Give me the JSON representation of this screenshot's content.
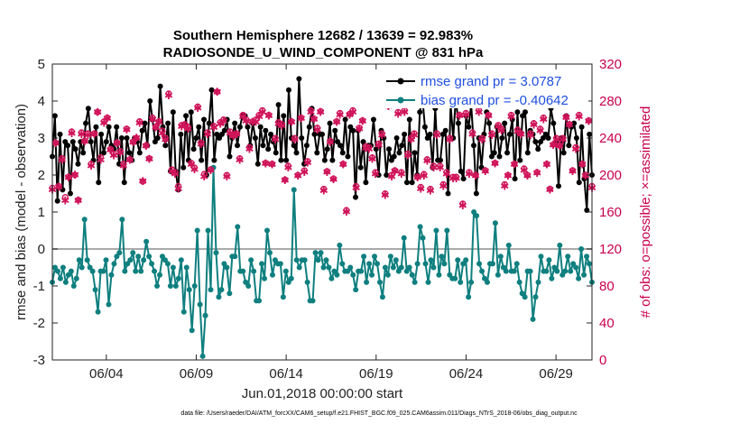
{
  "chart_data": {
    "type": "line",
    "title_line1": "Southern Hemisphere 12682 / 13639 = 92.983%",
    "title_line2": "RADIOSONDE_U_WIND_COMPONENT @ 831 hPa",
    "ylabel_left": "rmse and bias (model - observation)",
    "ylabel_right": "# of obs: o=possible; ×=assimilated",
    "xlabel": "Jun.01,2018 00:00:00 start",
    "footer": "data file: /Users/raeder/DAI/ATM_forcXX/CAM6_setup/f.e21.FHIST_BGC.f09_025.CAM6assim.011/Diags_NTrS_2018-06/obs_diag_output.nc",
    "ylim_left": [
      -3,
      5
    ],
    "ylim_right": [
      0,
      320
    ],
    "xlim_days": [
      1,
      31
    ],
    "yticks_left": [
      "-3",
      "-2",
      "-1",
      "0",
      "1",
      "2",
      "3",
      "4",
      "5"
    ],
    "yticks_right": [
      "0",
      "40",
      "80",
      "120",
      "160",
      "200",
      "240",
      "280",
      "320"
    ],
    "xticks": [
      {
        "day": 4,
        "label": "06/04"
      },
      {
        "day": 9,
        "label": "06/09"
      },
      {
        "day": 14,
        "label": "06/14"
      },
      {
        "day": 19,
        "label": "06/19"
      },
      {
        "day": 24,
        "label": "06/24"
      },
      {
        "day": 29,
        "label": "06/29"
      }
    ],
    "colors": {
      "rmse": "#000000",
      "bias": "#0f7f7f",
      "obs": "#d0155a",
      "zero_line": "#aaaaaa",
      "legend_text": "#1f4fe0"
    },
    "series": [
      {
        "name": "rmse grand pr = 3.0787",
        "axis": "left",
        "marker": "dot",
        "values": [
          2.5,
          3.6,
          1.3,
          3.1,
          1.6,
          2.9,
          2.8,
          1.5,
          2.9,
          2.7,
          2.3,
          2.9,
          2.6,
          3.4,
          3.8,
          2.9,
          2.4,
          3.3,
          1.8,
          3.1,
          2.6,
          2.9,
          3.3,
          2.8,
          2.7,
          3.3,
          2.3,
          3.0,
          1.8,
          3.0,
          2.6,
          2.4,
          3.0,
          2.9,
          2.6,
          3.2,
          3.4,
          2.8,
          4.0,
          3.5,
          2.9,
          3.0,
          4.4,
          3.3,
          2.8,
          3.4,
          2.1,
          3.7,
          2.1,
          1.6,
          3.1,
          2.2,
          3.6,
          2.4,
          3.7,
          2.7,
          3.0,
          3.3,
          2.4,
          3.5,
          2.0,
          3.4,
          4.3,
          2.4,
          3.1,
          3.0,
          3.1,
          3.2,
          3.5,
          2.5,
          3.0,
          3.4,
          2.8,
          3.3,
          3.6,
          3.6,
          3.3,
          2.8,
          3.4,
          3.0,
          2.3,
          3.3,
          2.8,
          3.2,
          2.7,
          3.1,
          2.9,
          2.6,
          3.9,
          2.4,
          3.6,
          2.4,
          4.3,
          3.0,
          2.8,
          2.6,
          4.6,
          3.0,
          2.3,
          2.8,
          3.3,
          3.8,
          3.1,
          2.6,
          3.1,
          3.1,
          2.4,
          2.7,
          3.4,
          2.4,
          3.2,
          2.9,
          2.8,
          2.6,
          3.5,
          2.5,
          3.3,
          3.2,
          1.4,
          3.2,
          2.2,
          2.9,
          1.8,
          2.8,
          2.8,
          3.5,
          2.7,
          2.0,
          3.2,
          3.0,
          2.0,
          2.7,
          2.4,
          2.5,
          3.0,
          2.6,
          2.8,
          3.1,
          1.8,
          3.5,
          1.8,
          2.6,
          2.0,
          3.7,
          4.1,
          3.3,
          3.0,
          3.1,
          2.2,
          3.8,
          2.4,
          2.4,
          3.1,
          3.2,
          1.5,
          3.9,
          3.0,
          4.1,
          3.4,
          2.1,
          1.9,
          3.6,
          3.3,
          3.9,
          2.8,
          1.5,
          3.0,
          2.2,
          3.1,
          3.7,
          3.4,
          2.5,
          2.6,
          3.3,
          2.5,
          3.0,
          3.4,
          2.6,
          3.1,
          3.5,
          1.9,
          3.7,
          2.4,
          3.6,
          3.7,
          2.6,
          3.2,
          3.1,
          2.9,
          2.7,
          2.9,
          3.0,
          3.1,
          3.0,
          3.8,
          3.4,
          2.9,
          1.7,
          3.0,
          2.6,
          3.6,
          2.8,
          3.3,
          3.4,
          3.0,
          1.8,
          3.3,
          1.9,
          1.05,
          3.1,
          2.0
        ]
      },
      {
        "name": "bias grand pr = -0.40642",
        "axis": "left",
        "marker": "dot",
        "values": [
          -0.9,
          -0.5,
          -0.6,
          -0.8,
          -0.5,
          -0.9,
          -0.7,
          -0.6,
          -1.0,
          -0.8,
          -0.3,
          -0.5,
          0.8,
          -0.3,
          -0.5,
          -0.6,
          -1.1,
          -1.7,
          -0.6,
          -0.6,
          -0.3,
          -1.5,
          -0.7,
          -0.4,
          -0.2,
          -0.1,
          0.8,
          -0.6,
          -0.4,
          -0.3,
          -0.1,
          -0.6,
          -0.2,
          -0.6,
          -0.3,
          0.2,
          -0.2,
          -0.4,
          -0.6,
          -1.0,
          -0.7,
          -0.2,
          -0.3,
          -0.4,
          -1.0,
          -0.5,
          -1.0,
          -0.8,
          -0.3,
          -1.7,
          -0.5,
          -1.1,
          -2.2,
          -1.0,
          0.5,
          -1.5,
          -2.9,
          -1.8,
          0.5,
          -1.1,
          2.2,
          -0.1,
          -1.3,
          -1.1,
          -0.4,
          -0.5,
          -1.2,
          -0.2,
          -0.2,
          0.6,
          -0.6,
          -0.6,
          -0.9,
          -1.0,
          -0.3,
          -0.6,
          -1.4,
          -1.4,
          -0.4,
          -0.8,
          0.5,
          -0.1,
          -0.7,
          -0.3,
          -0.4,
          -0.4,
          -1.3,
          -0.6,
          -0.9,
          -0.8,
          1.6,
          -0.3,
          -0.5,
          -0.3,
          -0.3,
          -0.9,
          -1.4,
          -1.4,
          -0.1,
          -0.3,
          -0.1,
          -0.5,
          -0.3,
          -0.5,
          -0.8,
          -0.6,
          -0.7,
          0.1,
          -0.4,
          -0.6,
          -0.6,
          -0.5,
          -0.7,
          -1.1,
          -0.6,
          -0.6,
          -0.2,
          -0.9,
          -0.4,
          -0.7,
          -0.2,
          -0.4,
          -0.9,
          -1.3,
          -0.5,
          -0.7,
          -0.2,
          -0.5,
          -0.3,
          -0.6,
          -0.5,
          0.3,
          -0.6,
          -0.5,
          -0.7,
          -0.9,
          -0.4,
          0.6,
          0.3,
          -0.4,
          -0.9,
          -0.3,
          -0.5,
          0.5,
          -0.7,
          -0.2,
          -0.4,
          0.5,
          -0.7,
          -0.8,
          -0.8,
          -0.3,
          -0.9,
          -0.4,
          -0.3,
          -1.3,
          -0.9,
          1.0,
          0.9,
          -0.4,
          -0.6,
          -0.8,
          -0.9,
          -0.4,
          -0.4,
          0.7,
          -0.7,
          -0.2,
          -0.5,
          -0.6,
          0.1,
          -0.6,
          -0.6,
          -0.4,
          -0.9,
          -1.2,
          -1.3,
          -0.6,
          -0.6,
          -1.9,
          -1.3,
          -0.9,
          -0.2,
          -0.6,
          -0.6,
          -0.3,
          -0.8,
          -0.5,
          -0.6,
          0.1,
          -0.7,
          -0.6,
          -0.2,
          -0.6,
          -0.4,
          -0.5,
          -0.8,
          0.0,
          -0.7,
          -0.2,
          -0.4,
          -0.9
        ]
      },
      {
        "name": "possible",
        "axis": "right",
        "marker": "circle",
        "values": [
          186,
          235,
          188,
          218,
          176,
          198,
          247,
          200,
          173,
          246,
          237,
          245,
          212,
          245,
          268,
          219,
          258,
          262,
          228,
          223,
          235,
          226,
          212,
          250,
          217,
          236,
          240,
          258,
          193,
          232,
          218,
          262,
          252,
          258,
          248,
          240,
          288,
          206,
          203,
          188,
          254,
          255,
          252,
          213,
          208,
          274,
          235,
          201,
          246,
          206,
          253,
          290,
          257,
          260,
          200,
          247,
          243,
          245,
          218,
          265,
          260,
          230,
          258,
          260,
          265,
          270,
          213,
          265,
          212,
          240,
          257,
          255,
          195,
          210,
          258,
          240,
          200,
          262,
          205,
          215,
          270,
          261,
          251,
          269,
          185,
          204,
          237,
          196,
          258,
          267,
          212,
          162,
          266,
          270,
          188,
          251,
          259,
          231,
          230,
          219,
          203,
          234,
          245,
          180,
          275,
          200,
          205,
          268,
          203,
          270,
          223,
          240,
          245,
          198,
          187,
          201,
          217,
          185,
          210,
          245,
          210,
          190,
          203,
          240,
          198,
          198,
          265,
          169,
          267,
          203,
          246,
          200,
          270,
          240,
          205,
          265,
          245,
          213,
          254,
          250,
          190,
          200,
          265,
          212,
          249,
          245,
          207,
          200,
          245,
          256,
          203,
          250,
          262,
          212,
          185,
          233,
          240,
          232,
          240,
          263,
          255,
          205,
          230,
          265,
          212,
          200,
          259,
          188
        ]
      },
      {
        "name": "assimilated",
        "axis": "right",
        "marker": "cross",
        "values": [
          184,
          234,
          187,
          216,
          172,
          197,
          245,
          200,
          172,
          244,
          236,
          243,
          210,
          244,
          268,
          216,
          256,
          261,
          227,
          221,
          234,
          224,
          210,
          249,
          216,
          235,
          240,
          256,
          193,
          231,
          217,
          260,
          251,
          257,
          245,
          238,
          286,
          204,
          201,
          185,
          252,
          253,
          250,
          211,
          206,
          272,
          233,
          198,
          244,
          205,
          251,
          290,
          255,
          258,
          198,
          245,
          242,
          244,
          216,
          263,
          258,
          228,
          257,
          257,
          263,
          268,
          212,
          264,
          211,
          238,
          255,
          253,
          194,
          208,
          257,
          238,
          199,
          261,
          203,
          213,
          268,
          260,
          249,
          268,
          183,
          203,
          235,
          195,
          257,
          265,
          211,
          160,
          265,
          268,
          186,
          250,
          258,
          229,
          228,
          217,
          201,
          232,
          243,
          178,
          274,
          198,
          204,
          266,
          201,
          268,
          221,
          238,
          243,
          197,
          185,
          199,
          215,
          183,
          208,
          243,
          208,
          188,
          201,
          238,
          196,
          196,
          264,
          167,
          265,
          201,
          244,
          199,
          268,
          238,
          204,
          264,
          243,
          212,
          252,
          248,
          188,
          199,
          263,
          211,
          247,
          244,
          205,
          199,
          243,
          254,
          202,
          248,
          260,
          211,
          184,
          232,
          238,
          231,
          238,
          262,
          254,
          204,
          228,
          263,
          211,
          199,
          258,
          186
        ]
      }
    ]
  }
}
